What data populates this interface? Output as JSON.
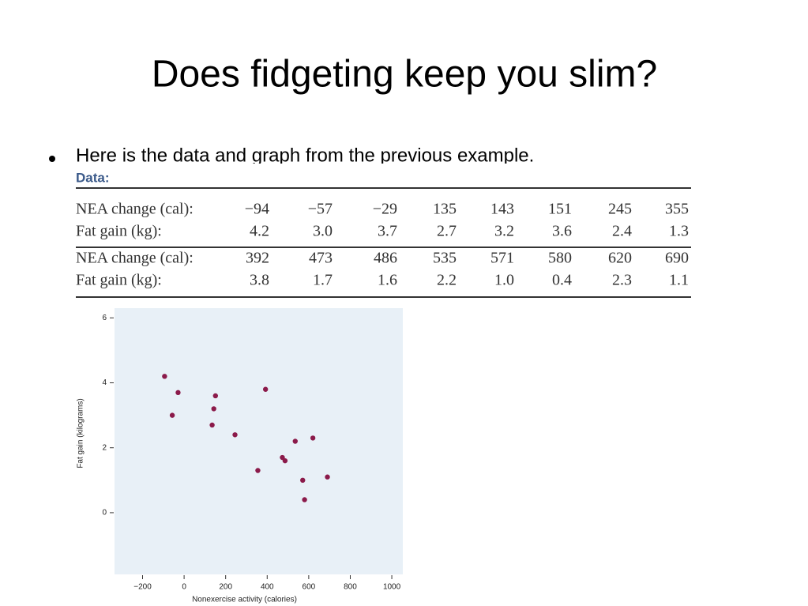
{
  "title": "Does fidgeting keep you slim?",
  "bullet": "Here is the data and graph from the previous example.",
  "table": {
    "caption": "Data:",
    "rows": [
      [
        "NEA change (cal):",
        "−94",
        "−57",
        "−29",
        "135",
        "143",
        "151",
        "245",
        "355"
      ],
      [
        "Fat gain (kg):",
        "4.2",
        "3.0",
        "3.7",
        "2.7",
        "3.2",
        "3.6",
        "2.4",
        "1.3"
      ],
      [
        "NEA change (cal):",
        "392",
        "473",
        "486",
        "535",
        "571",
        "580",
        "620",
        "690"
      ],
      [
        "Fat gain (kg):",
        "3.8",
        "1.7",
        "1.6",
        "2.2",
        "1.0",
        "0.4",
        "2.3",
        "1.1"
      ]
    ]
  },
  "chart_data": {
    "type": "scatter",
    "xlabel": "Nonexercise activity (calories)",
    "ylabel": "Fat gain (kilograms)",
    "x": [
      -94,
      -57,
      -29,
      135,
      143,
      151,
      245,
      355,
      392,
      473,
      486,
      535,
      571,
      580,
      620,
      690
    ],
    "values": [
      4.2,
      3.0,
      3.7,
      2.7,
      3.2,
      3.6,
      2.4,
      1.3,
      3.8,
      1.7,
      1.6,
      2.2,
      1.0,
      0.4,
      2.3,
      1.1
    ],
    "color": "#8b1a4a",
    "background": "#e8f0f7",
    "xlim": [
      -335,
      1053
    ],
    "ylim": [
      -1.9,
      6.3
    ],
    "xticks": [
      {
        "value": -200,
        "label": "−200"
      },
      0,
      200,
      400,
      600,
      800,
      1000
    ],
    "yticks": [
      0,
      2,
      4,
      6
    ]
  }
}
